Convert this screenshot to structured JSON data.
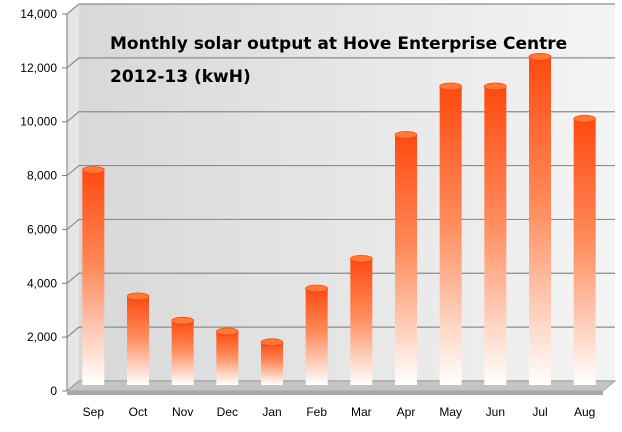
{
  "chart_data": {
    "type": "bar",
    "title_line1": "Monthly solar output at Hove Enterprise Centre",
    "title_line2": "2012-13 (kwH)",
    "categories": [
      "Sep",
      "Oct",
      "Nov",
      "Dec",
      "Jan",
      "Feb",
      "Mar",
      "Apr",
      "May",
      "Jun",
      "Jul",
      "Aug"
    ],
    "values": [
      8100,
      3400,
      2500,
      2100,
      1700,
      3700,
      4800,
      9400,
      11200,
      11200,
      12300,
      10000
    ],
    "ylim": [
      0,
      14000
    ],
    "yticks": [
      0,
      2000,
      4000,
      6000,
      8000,
      10000,
      12000,
      14000
    ],
    "ytick_labels": [
      "0",
      "2,000",
      "4,000",
      "6,000",
      "8,000",
      "10,000",
      "12,000",
      "14,000"
    ],
    "xlabel": "",
    "ylabel": "",
    "grid": true,
    "legend": "none",
    "colors": {
      "bar_top": "#ff4a10",
      "bar_bottom": "#ffffff",
      "cap": "#ff7a3a",
      "grid": "#8c8c8c",
      "floor": "#c4c4c4"
    }
  }
}
